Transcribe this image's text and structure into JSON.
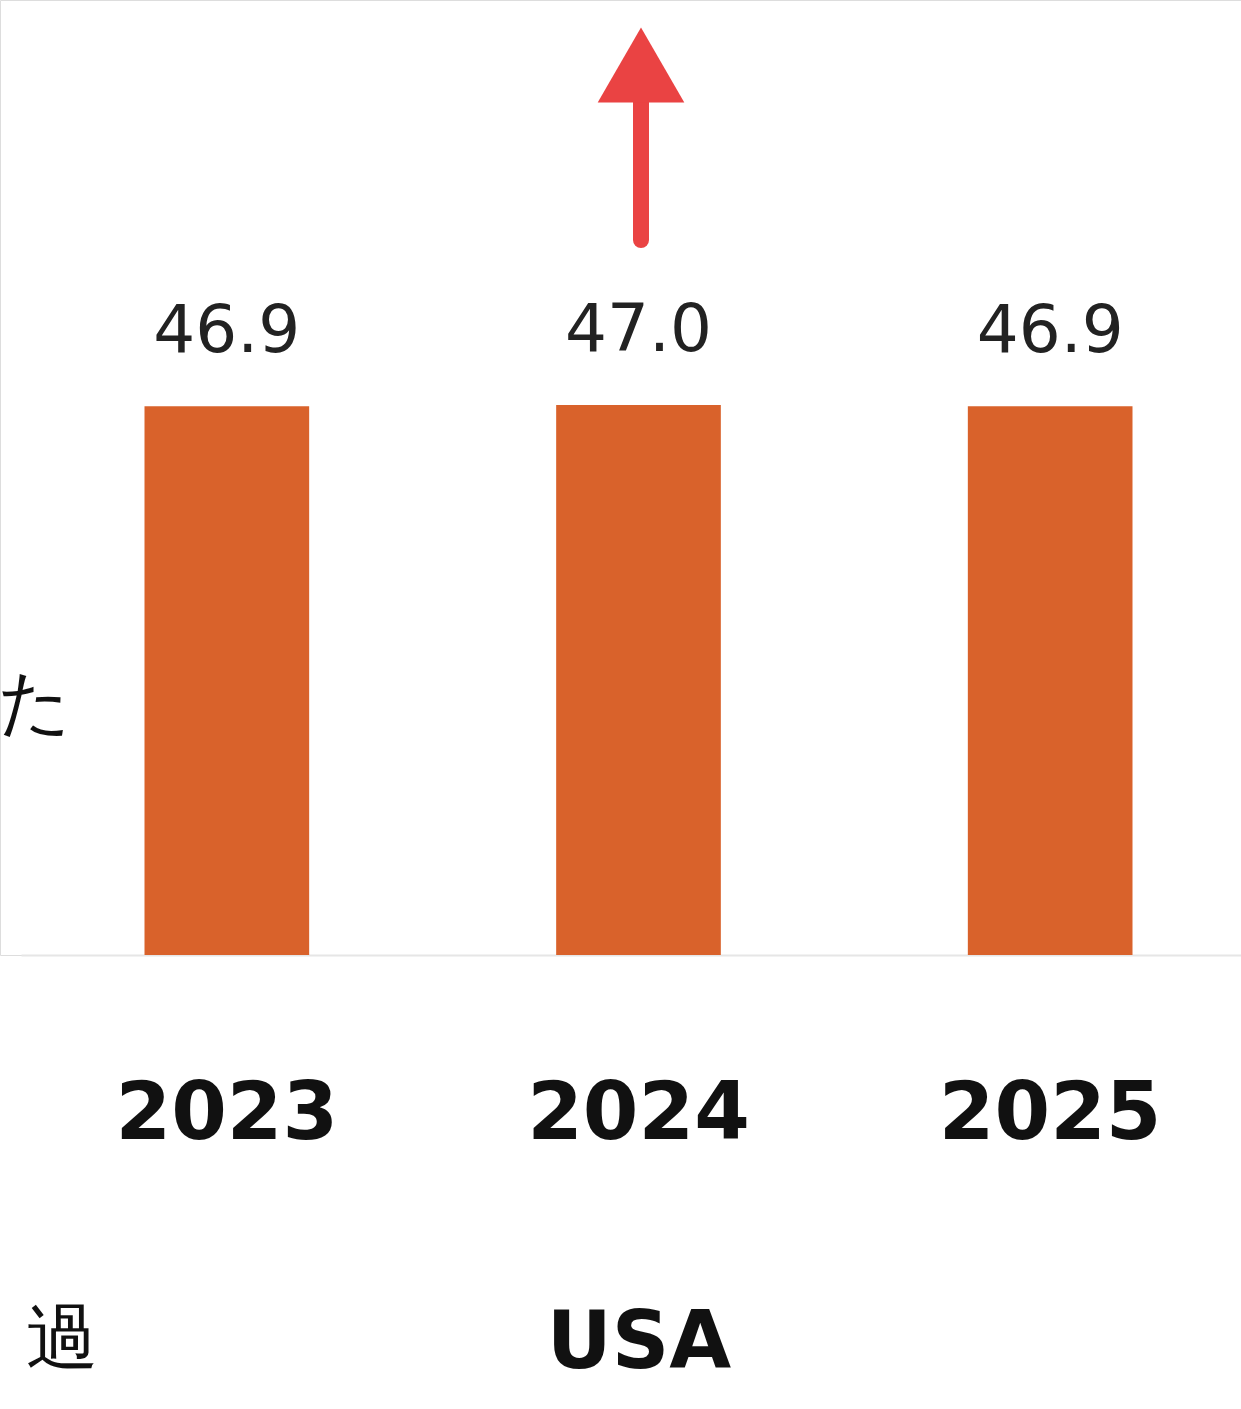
{
  "chart_data": {
    "type": "bar",
    "xlabel": "USA",
    "categories": [
      "2023",
      "2024",
      "2025"
    ],
    "series": [
      {
        "color": "#d9622b",
        "values": [
          46.9,
          47.0,
          46.9
        ],
        "value_labels": [
          "46.9",
          "47.0",
          "46.9"
        ]
      }
    ],
    "annotations": [
      "た",
      "過"
    ]
  }
}
